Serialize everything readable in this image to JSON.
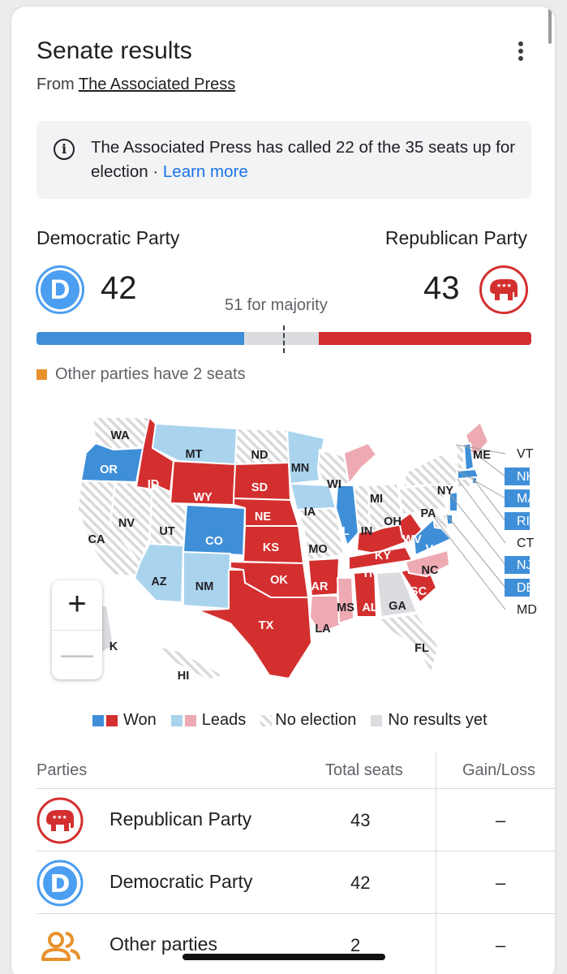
{
  "header": {
    "title": "Senate results",
    "source_prefix": "From ",
    "source_link": "The Associated Press"
  },
  "notice": {
    "text": "The Associated Press has called 22 of the 35 seats up for election · ",
    "link": "Learn more"
  },
  "summary": {
    "dem_name": "Democratic Party",
    "rep_name": "Republican Party",
    "dem_seats": "42",
    "rep_seats": "43",
    "majority_label": "51 for majority",
    "total_seats": 100,
    "majority_threshold": 51,
    "other_note": "Other parties have 2 seats",
    "dem_letter": "D"
  },
  "colors": {
    "dem_won": "#3f8fd8",
    "dem_leads": "#aad4ee",
    "rep_won": "#d32f2f",
    "rep_leads": "#eeaab2",
    "no_result": "#dadce0",
    "other": "#e8912d"
  },
  "map_states": [
    {
      "abbr": "WA",
      "status": "no-election"
    },
    {
      "abbr": "OR",
      "status": "dem-won"
    },
    {
      "abbr": "CA",
      "status": "no-election"
    },
    {
      "abbr": "NV",
      "status": "no-election"
    },
    {
      "abbr": "ID",
      "status": "rep-won"
    },
    {
      "abbr": "MT",
      "status": "dem-leads"
    },
    {
      "abbr": "WY",
      "status": "rep-won"
    },
    {
      "abbr": "UT",
      "status": "no-election"
    },
    {
      "abbr": "CO",
      "status": "dem-won"
    },
    {
      "abbr": "AZ",
      "status": "dem-leads"
    },
    {
      "abbr": "NM",
      "status": "dem-leads"
    },
    {
      "abbr": "ND",
      "status": "no-election"
    },
    {
      "abbr": "SD",
      "status": "rep-won"
    },
    {
      "abbr": "NE",
      "status": "rep-won"
    },
    {
      "abbr": "KS",
      "status": "rep-won"
    },
    {
      "abbr": "OK",
      "status": "rep-won"
    },
    {
      "abbr": "TX",
      "status": "rep-won"
    },
    {
      "abbr": "MN",
      "status": "dem-leads"
    },
    {
      "abbr": "IA",
      "status": "dem-leads"
    },
    {
      "abbr": "MO",
      "status": "no-election"
    },
    {
      "abbr": "AR",
      "status": "rep-won"
    },
    {
      "abbr": "LA",
      "status": "rep-leads"
    },
    {
      "abbr": "WI",
      "status": "no-election"
    },
    {
      "abbr": "IL",
      "status": "dem-won"
    },
    {
      "abbr": "MS",
      "status": "rep-leads"
    },
    {
      "abbr": "MI",
      "status": "rep-leads"
    },
    {
      "abbr": "IN",
      "status": "no-election"
    },
    {
      "abbr": "KY",
      "status": "rep-won"
    },
    {
      "abbr": "TN",
      "status": "rep-won"
    },
    {
      "abbr": "AL",
      "status": "rep-won"
    },
    {
      "abbr": "OH",
      "status": "no-election"
    },
    {
      "abbr": "WV",
      "status": "rep-won"
    },
    {
      "abbr": "GA",
      "status": "no-result"
    },
    {
      "abbr": "FL",
      "status": "no-election"
    },
    {
      "abbr": "SC",
      "status": "rep-won"
    },
    {
      "abbr": "NC",
      "status": "rep-leads"
    },
    {
      "abbr": "VA",
      "status": "dem-won"
    },
    {
      "abbr": "PA",
      "status": "no-election"
    },
    {
      "abbr": "NY",
      "status": "no-election"
    },
    {
      "abbr": "ME",
      "status": "rep-leads"
    },
    {
      "abbr": "VT",
      "status": "no-election"
    },
    {
      "abbr": "NH",
      "status": "dem-won"
    },
    {
      "abbr": "MA",
      "status": "dem-won"
    },
    {
      "abbr": "RI",
      "status": "dem-won"
    },
    {
      "abbr": "CT",
      "status": "no-election"
    },
    {
      "abbr": "NJ",
      "status": "dem-won"
    },
    {
      "abbr": "DE",
      "status": "dem-won"
    },
    {
      "abbr": "MD",
      "status": "no-election"
    },
    {
      "abbr": "AK",
      "status": "no-result"
    },
    {
      "abbr": "HI",
      "status": "no-election"
    }
  ],
  "map_labels": {
    "AK_partial": "K",
    "HI": "HI"
  },
  "zoom": {
    "in": "+",
    "out": "—"
  },
  "legend": {
    "won": "Won",
    "leads": "Leads",
    "no_election": "No election",
    "no_results": "No results yet"
  },
  "table": {
    "headers": {
      "parties": "Parties",
      "total_seats": "Total seats",
      "gain_loss": "Gain/Loss"
    },
    "rows": [
      {
        "party": "Republican Party",
        "seats": "43",
        "gain": "–",
        "icon": "republican-elephant-icon"
      },
      {
        "party": "Democratic Party",
        "seats": "42",
        "gain": "–",
        "icon": "democrat-d-icon"
      },
      {
        "party": "Other parties",
        "seats": "2",
        "gain": "–",
        "icon": "people-icon"
      }
    ]
  }
}
